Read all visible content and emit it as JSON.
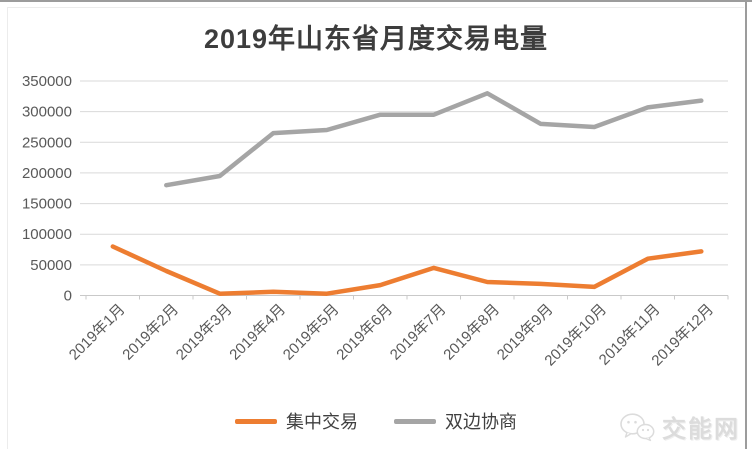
{
  "title": "2019年山东省月度交易电量",
  "chart_data": {
    "type": "line",
    "title": "2019年山东省月度交易电量",
    "categories": [
      "2019年1月",
      "2019年2月",
      "2019年3月",
      "2019年4月",
      "2019年5月",
      "2019年6月",
      "2019年7月",
      "2019年8月",
      "2019年9月",
      "2019年10月",
      "2019年11月",
      "2019年12月"
    ],
    "series": [
      {
        "id": "centralized-trading",
        "name": "集中交易",
        "color": "#ED7D31",
        "values": [
          80000,
          40000,
          3000,
          6000,
          3000,
          17000,
          45000,
          22000,
          19000,
          14000,
          60000,
          72000
        ]
      },
      {
        "id": "bilateral-negotiation",
        "name": "双边协商",
        "color": "#A5A5A5",
        "values": [
          null,
          180000,
          195000,
          265000,
          270000,
          295000,
          295000,
          330000,
          280000,
          275000,
          307000,
          318000
        ]
      }
    ],
    "xlabel": "",
    "ylabel": "",
    "ylim": [
      0,
      350000
    ],
    "ytick_values": [
      350000,
      300000,
      250000,
      200000,
      150000,
      100000,
      50000,
      0
    ],
    "grid": true,
    "legend_position": "bottom",
    "x_label_rotation_deg": 45
  },
  "legend": {
    "items": [
      {
        "label": "集中交易",
        "color": "#ED7D31"
      },
      {
        "label": "双边协商",
        "color": "#A5A5A5"
      }
    ]
  },
  "watermark": {
    "text": "交能网",
    "icon": "wechat-icon"
  },
  "colors": {
    "grid_line": "#d9d9d9",
    "axis_line": "#c9c9c9",
    "tick_label": "#595959",
    "title_text": "#3d3d3d",
    "legend_text": "#404040",
    "watermark_text": "#dcdcdc",
    "frame_edge": "#9c9c9c"
  }
}
